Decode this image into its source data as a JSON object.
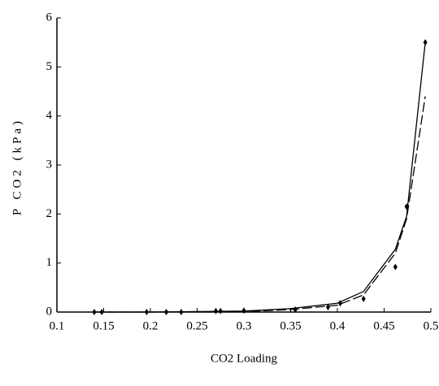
{
  "chart_data": {
    "type": "line",
    "x_label": "CO2 Loading",
    "y_label": "P CO2 (kPa)",
    "xlim": [
      0.1,
      0.5
    ],
    "xticks": [
      0.1,
      0.15,
      0.2,
      0.25,
      0.3,
      0.35,
      0.4,
      0.45,
      0.5
    ],
    "ylim": [
      0,
      6
    ],
    "yticks": [
      0,
      1,
      2,
      3,
      4,
      5,
      6
    ],
    "series": [
      {
        "color": "#000000",
        "marker": "diamond",
        "x": [
          0.14,
          0.148,
          0.196,
          0.217,
          0.233,
          0.27,
          0.275,
          0.3,
          0.355,
          0.39,
          0.403,
          0.428,
          0.462,
          0.474,
          0.494
        ],
        "values": [
          0.0,
          0.0,
          0.0,
          0.0,
          0.0,
          0.02,
          0.02,
          0.03,
          0.05,
          0.1,
          0.18,
          0.27,
          0.92,
          2.15,
          5.5
        ]
      },
      {
        "color": "#000000",
        "dashed": false,
        "x": [
          0.14,
          0.2,
          0.25,
          0.3,
          0.35,
          0.4,
          0.428,
          0.462,
          0.474,
          0.494
        ],
        "values": [
          0.0,
          0.0,
          0.01,
          0.02,
          0.07,
          0.18,
          0.42,
          1.28,
          1.95,
          5.5
        ]
      },
      {
        "color": "#000000",
        "dashed": true,
        "x": [
          0.14,
          0.2,
          0.25,
          0.3,
          0.35,
          0.4,
          0.428,
          0.462,
          0.474,
          0.494
        ],
        "values": [
          0.0,
          0.0,
          0.005,
          0.01,
          0.05,
          0.14,
          0.35,
          1.2,
          1.9,
          4.4
        ]
      }
    ]
  }
}
